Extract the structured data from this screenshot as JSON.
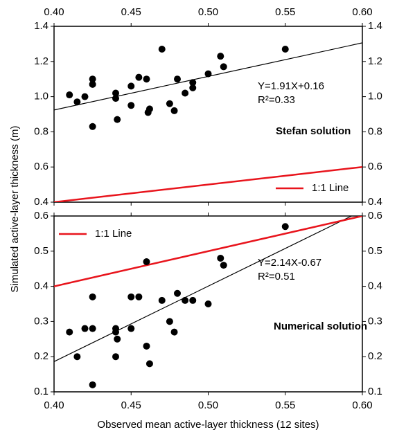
{
  "chart_data": [
    {
      "type": "scatter",
      "y_label": "Simulated active-layer thickness (m)",
      "x": [
        0.41,
        0.415,
        0.42,
        0.425,
        0.425,
        0.425,
        0.44,
        0.44,
        0.441,
        0.45,
        0.45,
        0.455,
        0.46,
        0.461,
        0.462,
        0.47,
        0.475,
        0.478,
        0.48,
        0.485,
        0.49,
        0.49,
        0.5,
        0.508,
        0.51,
        0.55
      ],
      "values": [
        1.01,
        0.97,
        1.0,
        1.1,
        1.07,
        0.83,
        1.02,
        0.99,
        0.87,
        1.06,
        0.95,
        1.11,
        1.1,
        0.91,
        0.93,
        1.27,
        0.96,
        0.92,
        1.1,
        1.02,
        1.08,
        1.05,
        1.13,
        1.23,
        1.17,
        1.27
      ],
      "color": "#000000",
      "xlim": [
        0.4,
        0.6
      ],
      "xticks": [
        {
          "value": 0.4,
          "label": "0.40"
        },
        0.45,
        {
          "value": 0.5,
          "label": "0.50"
        },
        0.55,
        {
          "value": 0.6,
          "label": "0.60"
        }
      ],
      "ylim": [
        0.4,
        1.4
      ],
      "yticks": [
        0.4,
        0.6,
        0.8,
        {
          "value": 1.0,
          "label": "1.0"
        },
        1.2,
        1.4
      ],
      "lines": [
        {
          "x": [
            0.4,
            0.6
          ],
          "values": [
            0.924,
            1.306
          ],
          "color": "#000000"
        },
        {
          "name": "1:1 Line",
          "x": [
            0.4,
            0.6
          ],
          "values": [
            0.4,
            0.6
          ],
          "color": "#e8141c"
        }
      ],
      "annotations": [
        "Y=1.91X+0.16",
        "R²=0.33"
      ],
      "label": "Stefan solution",
      "legend": "lower right"
    },
    {
      "type": "scatter",
      "x_label": "Observed mean active-layer thickness (12 sites)",
      "x": [
        0.41,
        0.415,
        0.42,
        0.425,
        0.425,
        0.425,
        0.44,
        0.44,
        0.441,
        0.44,
        0.45,
        0.45,
        0.455,
        0.46,
        0.46,
        0.462,
        0.47,
        0.475,
        0.478,
        0.48,
        0.485,
        0.49,
        0.5,
        0.508,
        0.51,
        0.55
      ],
      "values": [
        0.27,
        0.2,
        0.28,
        0.37,
        0.28,
        0.12,
        0.28,
        0.27,
        0.25,
        0.2,
        0.37,
        0.28,
        0.37,
        0.47,
        0.23,
        0.18,
        0.36,
        0.3,
        0.27,
        0.38,
        0.36,
        0.36,
        0.35,
        0.48,
        0.46,
        0.57
      ],
      "color": "#000000",
      "xlim": [
        0.4,
        0.6
      ],
      "xticks": [
        {
          "value": 0.4,
          "label": "0.40"
        },
        0.45,
        {
          "value": 0.5,
          "label": "0.50"
        },
        0.55,
        {
          "value": 0.6,
          "label": "0.60"
        }
      ],
      "ylim": [
        0.1,
        0.6
      ],
      "yticks": [
        0.1,
        0.2,
        0.3,
        0.4,
        0.5,
        0.6
      ],
      "lines": [
        {
          "x": [
            0.4,
            0.593
          ],
          "values": [
            0.186,
            0.6
          ],
          "color": "#000000"
        },
        {
          "name": "1:1 Line",
          "x": [
            0.4,
            0.6
          ],
          "values": [
            0.4,
            0.6
          ],
          "color": "#e8141c"
        }
      ],
      "annotations": [
        "Y=2.14X-0.67",
        "R²=0.51"
      ],
      "label": "Numerical solution",
      "legend": "upper left"
    }
  ]
}
